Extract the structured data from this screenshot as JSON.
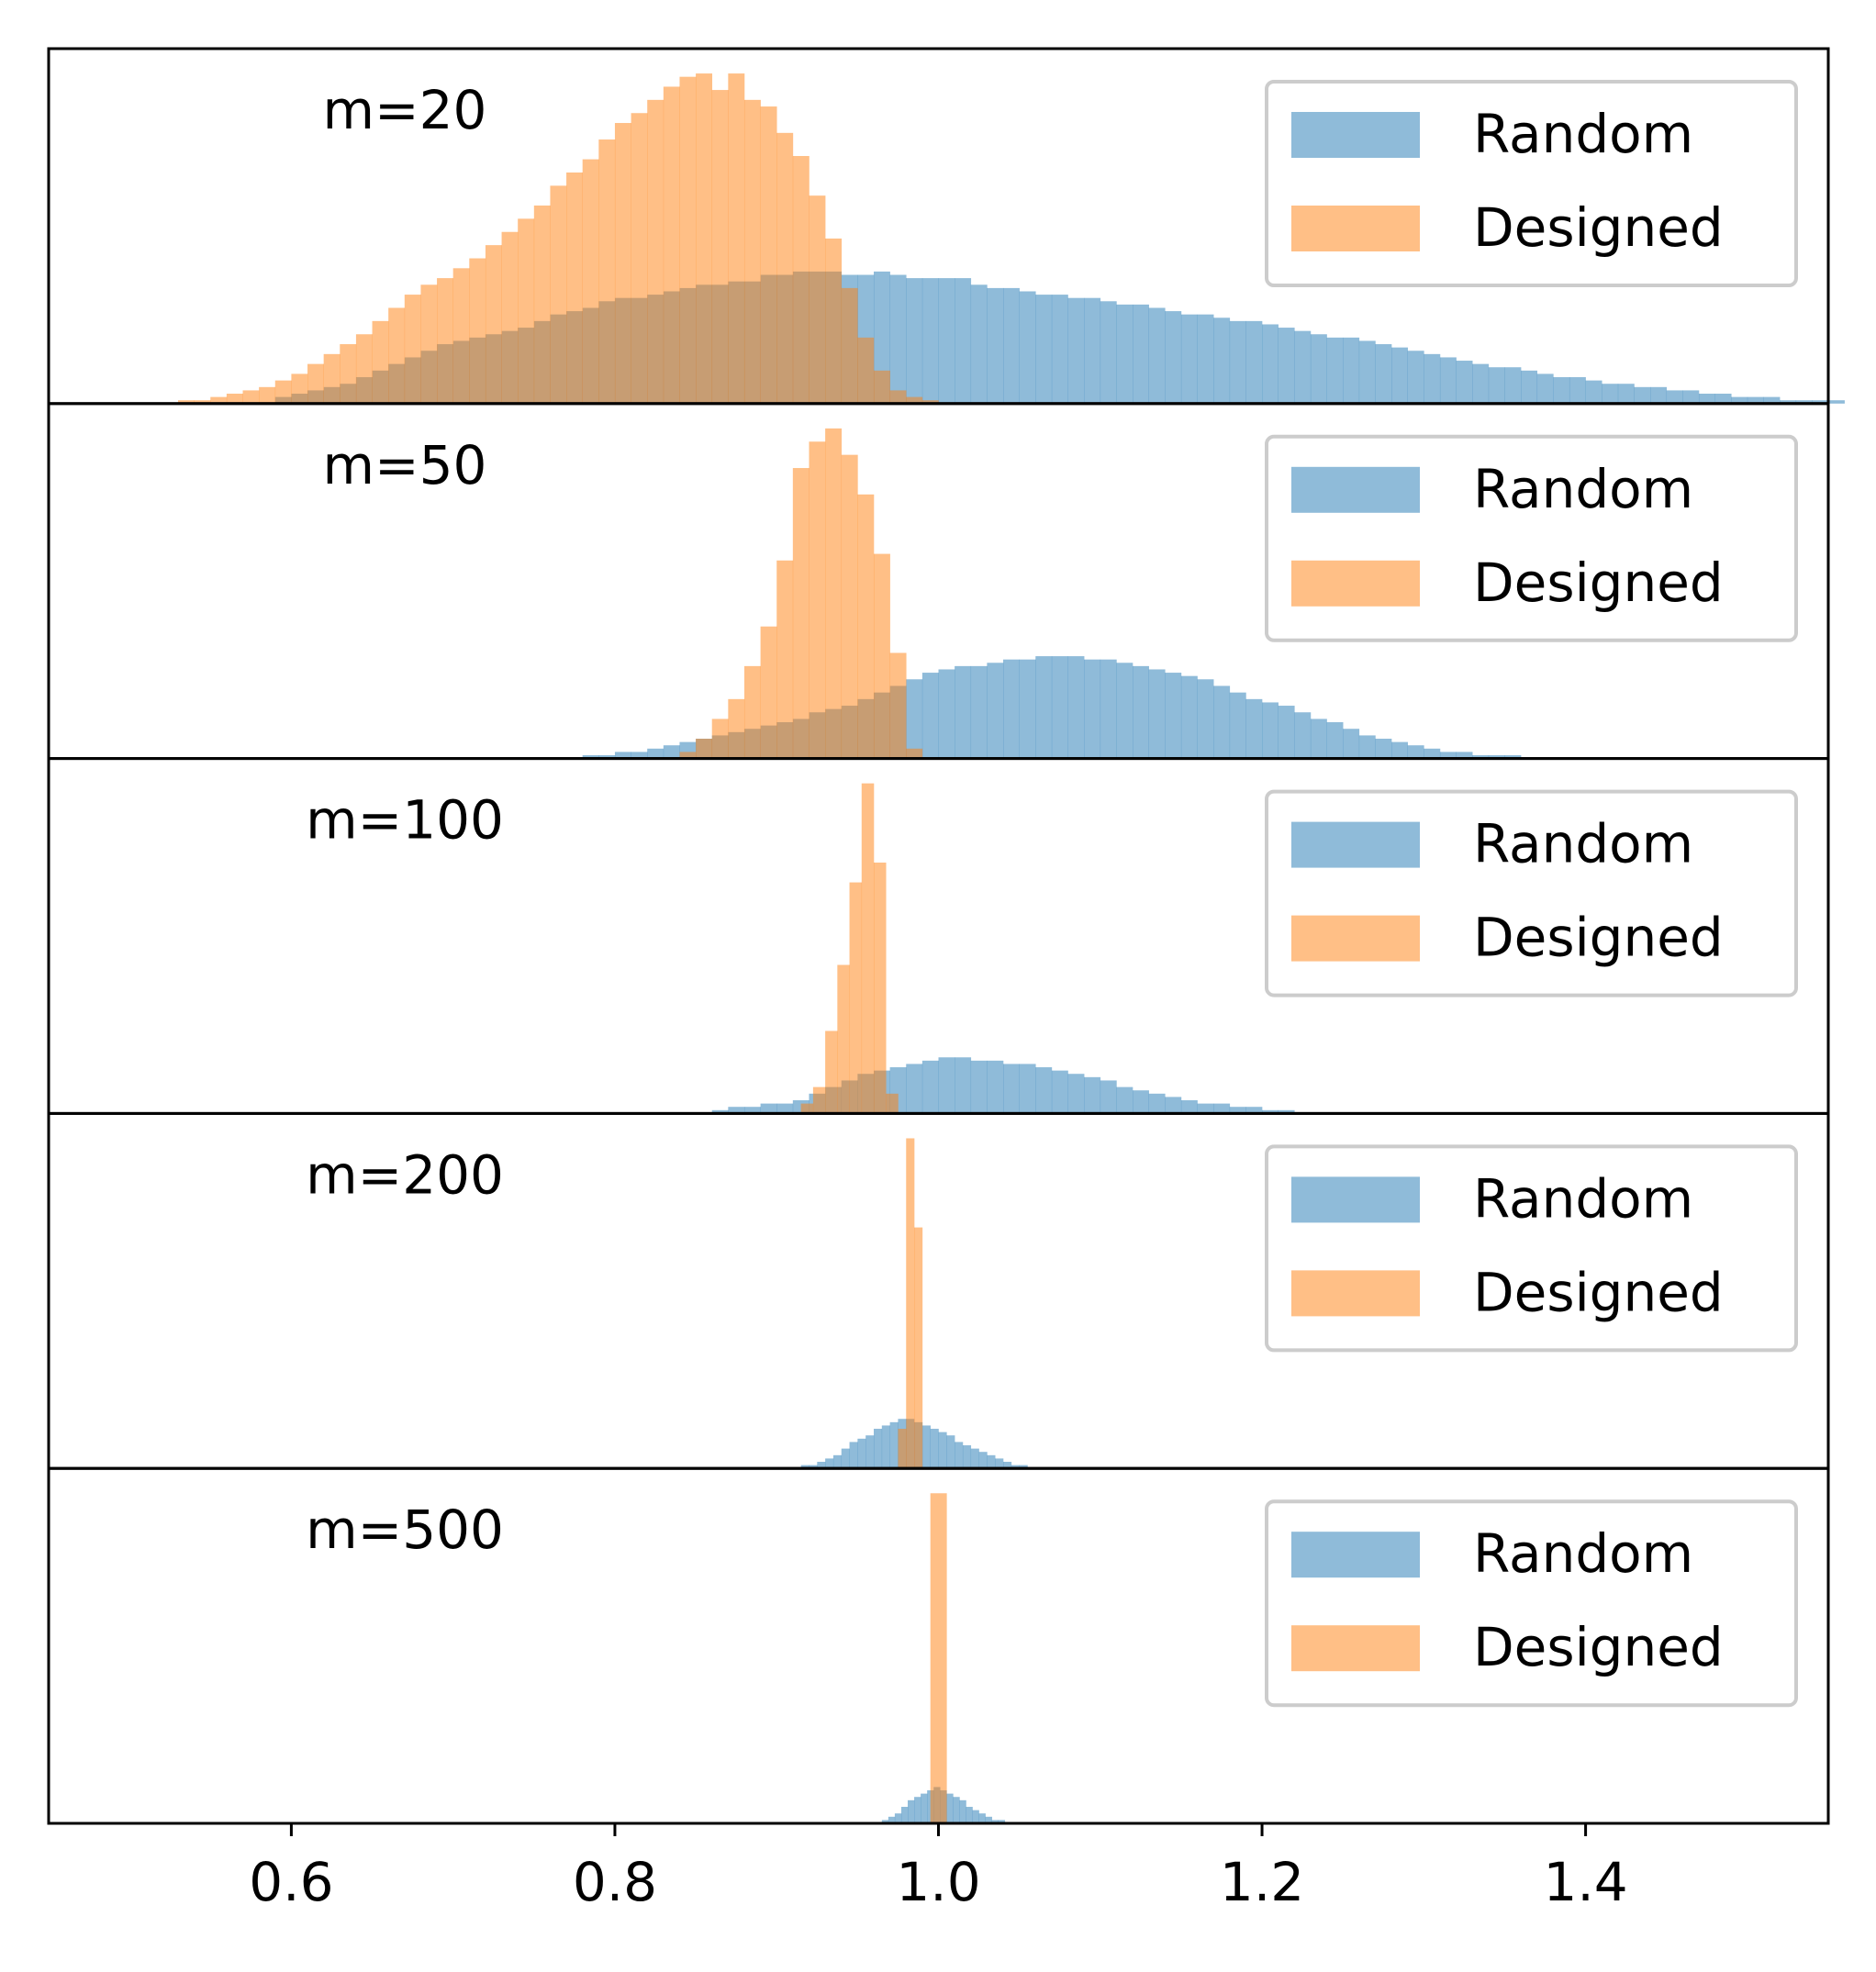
{
  "chart_data": {
    "type": "histogram",
    "layout": "stacked-panels-shared-x",
    "xlim": [
      0.45,
      1.55
    ],
    "xticks": [
      "0.6",
      "0.8",
      "1.0",
      "1.2",
      "1.4"
    ],
    "xtick_values": [
      0.6,
      0.8,
      1.0,
      1.2,
      1.4
    ],
    "grid": false,
    "legend_placement": "top-right",
    "colors": {
      "Random": "#1f77b4",
      "Designed": "#ff7f0e"
    },
    "bar_opacity": 0.5,
    "series_names": [
      "Random",
      "Designed"
    ],
    "panels": [
      {
        "label": "m=20",
        "legend": [
          "Random",
          "Designed"
        ],
        "series": [
          {
            "name": "Random",
            "bin_start": 0.59,
            "bin_width": 0.01,
            "counts": [
              2,
              3,
              4,
              5,
              6,
              8,
              10,
              12,
              14,
              16,
              18,
              19,
              20,
              21,
              22,
              23,
              25,
              27,
              28,
              29,
              31,
              32,
              32,
              33,
              34,
              35,
              36,
              36,
              37,
              37,
              39,
              39,
              40,
              40,
              40,
              39,
              39,
              40,
              39,
              38,
              38,
              38,
              38,
              36,
              35,
              35,
              34,
              33,
              33,
              32,
              32,
              31,
              30,
              30,
              29,
              28,
              27,
              27,
              26,
              25,
              25,
              24,
              23,
              22,
              21,
              20,
              20,
              19,
              18,
              17,
              16,
              15,
              14,
              13,
              12,
              11,
              11,
              10,
              9,
              8,
              8,
              7,
              6,
              6,
              5,
              5,
              4,
              4,
              3,
              3,
              2,
              2,
              2,
              1,
              1,
              1,
              1
            ]
          },
          {
            "name": "Designed",
            "bin_start": 0.53,
            "bin_width": 0.01,
            "counts": [
              1,
              1,
              2,
              3,
              4,
              5,
              7,
              9,
              12,
              15,
              18,
              21,
              25,
              29,
              33,
              36,
              38,
              41,
              44,
              48,
              52,
              56,
              60,
              66,
              70,
              74,
              80,
              85,
              88,
              92,
              96,
              99,
              100,
              95,
              100,
              92,
              90,
              82,
              75,
              63,
              50,
              35,
              20,
              10,
              4,
              2,
              1
            ]
          }
        ]
      },
      {
        "label": "m=50",
        "legend": [
          "Random",
          "Designed"
        ],
        "series": [
          {
            "name": "Random",
            "bin_start": 0.78,
            "bin_width": 0.01,
            "counts": [
              1,
              1,
              2,
              2,
              3,
              4,
              5,
              6,
              7,
              8,
              9,
              10,
              11,
              12,
              14,
              15,
              16,
              18,
              20,
              22,
              24,
              26,
              27,
              28,
              28,
              29,
              30,
              30,
              31,
              31,
              31,
              30,
              30,
              29,
              28,
              27,
              26,
              25,
              24,
              22,
              20,
              18,
              17,
              16,
              14,
              12,
              11,
              9,
              7,
              6,
              5,
              4,
              3,
              2,
              2,
              1,
              1,
              1
            ]
          },
          {
            "name": "Designed",
            "bin_start": 0.84,
            "bin_width": 0.01,
            "counts": [
              2,
              6,
              12,
              18,
              28,
              40,
              60,
              88,
              96,
              100,
              92,
              80,
              62,
              32,
              3
            ]
          }
        ]
      },
      {
        "label": "m=100",
        "legend": [
          "Random",
          "Designed"
        ],
        "series": [
          {
            "name": "Random",
            "bin_start": 0.86,
            "bin_width": 0.01,
            "counts": [
              1,
              2,
              2,
              3,
              3,
              4,
              6,
              8,
              10,
              12,
              13,
              14,
              15,
              16,
              17,
              17,
              16,
              16,
              15,
              15,
              14,
              13,
              12,
              11,
              10,
              8,
              7,
              6,
              5,
              4,
              3,
              3,
              2,
              2,
              1,
              1
            ]
          },
          {
            "name": "Designed",
            "bin_start": 0.915,
            "bin_width": 0.0075,
            "counts": [
              3,
              8,
              25,
              45,
              70,
              100,
              76,
              6
            ]
          }
        ]
      },
      {
        "label": "m=200",
        "legend": [
          "Random",
          "Designed"
        ],
        "series": [
          {
            "name": "Random",
            "bin_start": 0.915,
            "bin_width": 0.005,
            "counts": [
              1,
              1,
              2,
              3,
              4,
              6,
              8,
              9,
              10,
              12,
              13,
              14,
              15,
              15,
              14,
              13,
              12,
              11,
              10,
              8,
              7,
              6,
              5,
              4,
              3,
              2,
              1,
              1
            ]
          },
          {
            "name": "Designed",
            "bin_start": 0.975,
            "bin_width": 0.005,
            "counts": [
              12,
              100,
              73
            ]
          }
        ]
      },
      {
        "label": "m=500",
        "legend": [
          "Random",
          "Designed"
        ],
        "series": [
          {
            "name": "Random",
            "bin_start": 0.965,
            "bin_width": 0.004,
            "counts": [
              1,
              2,
              3,
              5,
              7,
              8,
              9,
              10,
              11,
              10,
              9,
              8,
              7,
              5,
              4,
              3,
              2,
              1,
              1
            ]
          },
          {
            "name": "Designed",
            "bin_start": 0.995,
            "bin_width": 0.01,
            "counts": [
              100
            ]
          }
        ]
      }
    ]
  }
}
